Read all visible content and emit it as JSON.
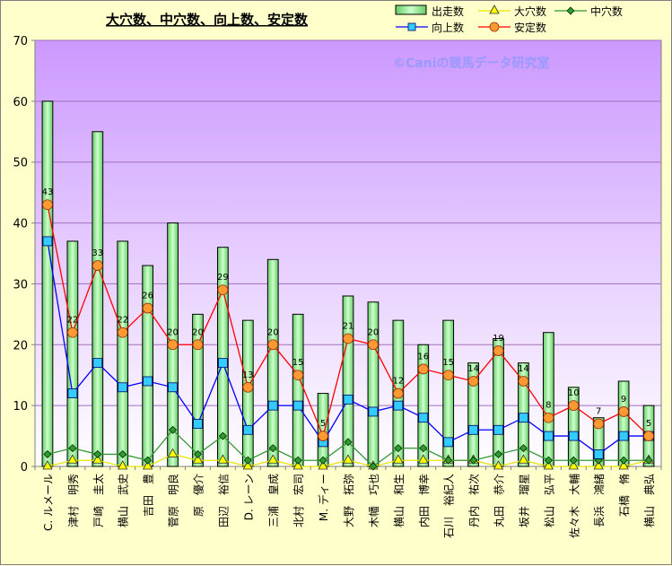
{
  "chart_data": {
    "type": "bar",
    "title": "大穴数、中穴数、向上数、安定数",
    "watermark": "©Caniの競馬データ研究室",
    "xlabel": "",
    "ylabel": "",
    "ylim": [
      0,
      70
    ],
    "yticks": [
      0,
      10,
      20,
      30,
      40,
      50,
      60,
      70
    ],
    "grid": true,
    "legend_position": "top-right",
    "categories": [
      "C. ルメール",
      "津村　明秀",
      "戸崎　圭太",
      "横山　武史",
      "吉田　豊",
      "菅原　明良",
      "原　優介",
      "田辺　裕信",
      "D. レーン",
      "三浦　皇成",
      "北村　宏司",
      "M. ディー",
      "大野　拓弥",
      "木幡　巧也",
      "横山　和生",
      "内田　博幸",
      "石川　裕紀人",
      "丹内　祐次",
      "丸田　恭介",
      "坂井　瑠星",
      "松山　弘平",
      "佐々木　大輔",
      "長浜　鴻緒",
      "石橋　脩",
      "横山　典弘"
    ],
    "series": [
      {
        "name": "出走数",
        "type": "bar",
        "color": "#99ff99",
        "values": [
          60,
          37,
          55,
          37,
          33,
          40,
          25,
          36,
          24,
          34,
          25,
          12,
          28,
          27,
          24,
          20,
          24,
          17,
          21,
          17,
          22,
          13,
          8,
          14,
          10
        ]
      },
      {
        "name": "大穴数",
        "type": "line",
        "color": "#ffff00",
        "values": [
          0,
          1,
          1,
          0,
          0,
          2,
          1,
          1,
          0,
          1,
          0,
          0,
          1,
          0,
          1,
          1,
          1,
          1,
          0,
          1,
          0,
          0,
          0,
          0,
          1
        ]
      },
      {
        "name": "中穴数",
        "type": "line",
        "color": "#339933",
        "values": [
          2,
          3,
          2,
          2,
          1,
          6,
          2,
          5,
          1,
          3,
          1,
          1,
          4,
          0,
          3,
          3,
          1,
          1,
          2,
          3,
          1,
          1,
          1,
          1,
          1
        ]
      },
      {
        "name": "向上数",
        "type": "line",
        "color": "#0000ff",
        "values": [
          37,
          12,
          17,
          13,
          14,
          13,
          7,
          17,
          6,
          10,
          10,
          4,
          11,
          9,
          10,
          8,
          4,
          6,
          6,
          8,
          5,
          5,
          2,
          5,
          5
        ]
      },
      {
        "name": "安定数",
        "type": "line",
        "color": "#ff0000",
        "values": [
          43,
          22,
          33,
          22,
          26,
          20,
          20,
          29,
          13,
          20,
          15,
          5,
          21,
          20,
          12,
          16,
          15,
          14,
          19,
          14,
          8,
          10,
          7,
          9,
          5
        ]
      }
    ],
    "data_labels": [
      "43",
      "22",
      "33",
      "22",
      "26",
      "20",
      "20",
      "29",
      "13",
      "20",
      "15",
      "5",
      "21",
      "20",
      "12",
      "16",
      "15",
      "14",
      "19",
      "14",
      "8",
      "10",
      "7",
      "9",
      "5"
    ]
  }
}
